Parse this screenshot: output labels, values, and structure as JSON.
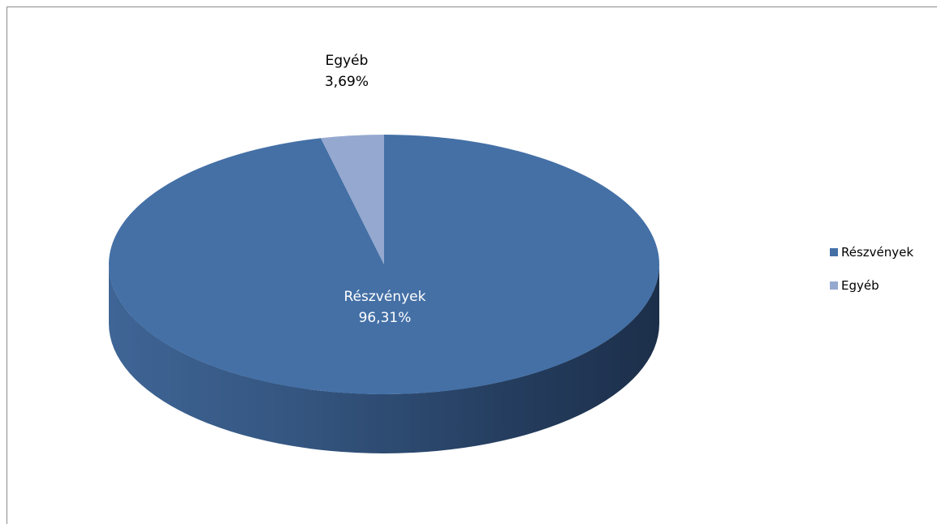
{
  "chart_data": {
    "type": "pie",
    "title": "",
    "three_d": true,
    "categories": [
      "Részvények",
      "Egyéb"
    ],
    "series": [
      {
        "values": [
          96.31,
          3.69
        ]
      }
    ],
    "data_labels": [
      {
        "category": "Részvények",
        "value_text": "96,31%"
      },
      {
        "category": "Egyéb",
        "value_text": "3,69%"
      }
    ],
    "legend": {
      "position": "right",
      "entries": [
        "Részvények",
        "Egyéb"
      ]
    },
    "colors": [
      "#4470A6",
      "#95A9D0"
    ]
  }
}
